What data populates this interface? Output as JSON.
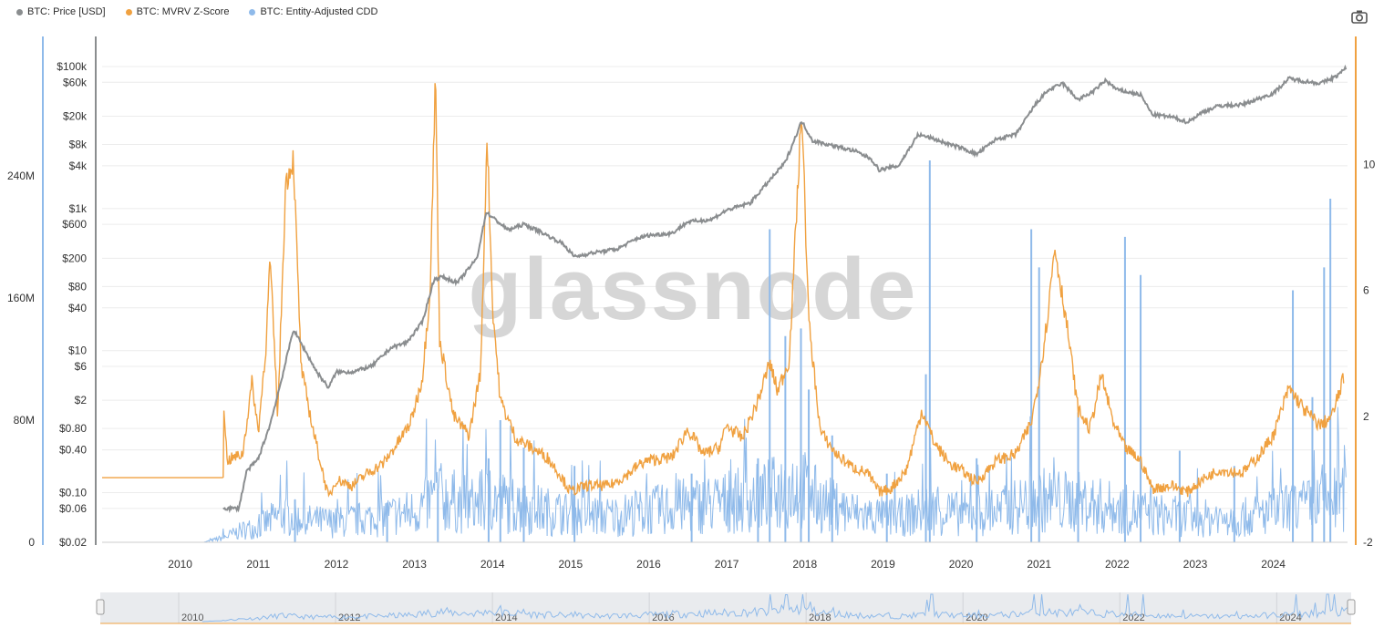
{
  "legend": [
    {
      "label": "BTC: Price [USD]",
      "color": "#8a8d8f"
    },
    {
      "label": "BTC: MVRV Z-Score",
      "color": "#f0a140"
    },
    {
      "label": "BTC: Entity-Adjusted CDD",
      "color": "#8fbaea"
    }
  ],
  "watermark": "glassnode",
  "chart_data": {
    "type": "line",
    "x_axis": {
      "ticks": [
        "2010",
        "2011",
        "2012",
        "2013",
        "2014",
        "2015",
        "2016",
        "2017",
        "2018",
        "2019",
        "2020",
        "2021",
        "2022",
        "2023",
        "2024"
      ],
      "range": [
        2009.0,
        2024.95
      ]
    },
    "y_price": {
      "scale": "log",
      "range": [
        0.02,
        250000
      ],
      "tick_labels": [
        "$100k",
        "$60k",
        "$20k",
        "$8k",
        "$4k",
        "$1k",
        "$600",
        "$200",
        "$80",
        "$40",
        "$10",
        "$6",
        "$2",
        "$0.80",
        "$0.40",
        "$0.10",
        "$0.06",
        "$0.02"
      ],
      "tick_values": [
        100000,
        60000,
        20000,
        8000,
        4000,
        1000,
        600,
        200,
        80,
        40,
        10,
        6,
        2,
        0.8,
        0.4,
        0.1,
        0.06,
        0.02
      ]
    },
    "y_cdd": {
      "range": [
        0,
        330000000
      ],
      "tick_labels": [
        "240M",
        "160M",
        "80M",
        "0"
      ],
      "tick_values": [
        240000000,
        160000000,
        80000000,
        0
      ]
    },
    "y_mvrv": {
      "range": [
        -2,
        14
      ],
      "tick_labels": [
        "10",
        "6",
        "2",
        "-2"
      ],
      "tick_values": [
        10,
        6,
        2,
        -2
      ]
    },
    "series": [
      {
        "name": "BTC: Price [USD]",
        "color": "#8a8d8f",
        "axis": "price",
        "points": [
          [
            2010.55,
            0.06
          ],
          [
            2010.75,
            0.06
          ],
          [
            2010.85,
            0.2
          ],
          [
            2011.0,
            0.3
          ],
          [
            2011.15,
            0.9
          ],
          [
            2011.3,
            4
          ],
          [
            2011.45,
            20
          ],
          [
            2011.6,
            10
          ],
          [
            2011.75,
            5
          ],
          [
            2011.9,
            3
          ],
          [
            2012.0,
            5
          ],
          [
            2012.2,
            5
          ],
          [
            2012.45,
            6
          ],
          [
            2012.7,
            11
          ],
          [
            2012.9,
            13
          ],
          [
            2013.1,
            25
          ],
          [
            2013.25,
            100
          ],
          [
            2013.35,
            110
          ],
          [
            2013.55,
            90
          ],
          [
            2013.8,
            200
          ],
          [
            2013.92,
            900
          ],
          [
            2014.0,
            750
          ],
          [
            2014.2,
            500
          ],
          [
            2014.4,
            600
          ],
          [
            2014.6,
            480
          ],
          [
            2014.9,
            320
          ],
          [
            2015.05,
            210
          ],
          [
            2015.3,
            240
          ],
          [
            2015.6,
            270
          ],
          [
            2015.85,
            380
          ],
          [
            2016.0,
            420
          ],
          [
            2016.3,
            450
          ],
          [
            2016.5,
            650
          ],
          [
            2016.8,
            700
          ],
          [
            2017.0,
            950
          ],
          [
            2017.3,
            1200
          ],
          [
            2017.55,
            2500
          ],
          [
            2017.75,
            4500
          ],
          [
            2017.96,
            17000
          ],
          [
            2018.1,
            9000
          ],
          [
            2018.4,
            7500
          ],
          [
            2018.65,
            6400
          ],
          [
            2018.85,
            5000
          ],
          [
            2018.95,
            3500
          ],
          [
            2019.2,
            4000
          ],
          [
            2019.45,
            11000
          ],
          [
            2019.6,
            10000
          ],
          [
            2019.85,
            8000
          ],
          [
            2020.0,
            7200
          ],
          [
            2020.2,
            5800
          ],
          [
            2020.45,
            9500
          ],
          [
            2020.7,
            11000
          ],
          [
            2020.95,
            29000
          ],
          [
            2021.1,
            45000
          ],
          [
            2021.3,
            58000
          ],
          [
            2021.5,
            34000
          ],
          [
            2021.7,
            45000
          ],
          [
            2021.85,
            64000
          ],
          [
            2022.0,
            47000
          ],
          [
            2022.3,
            40000
          ],
          [
            2022.45,
            21000
          ],
          [
            2022.7,
            19500
          ],
          [
            2022.9,
            16500
          ],
          [
            2023.1,
            23000
          ],
          [
            2023.3,
            28000
          ],
          [
            2023.6,
            29000
          ],
          [
            2023.8,
            35000
          ],
          [
            2024.0,
            42000
          ],
          [
            2024.2,
            68000
          ],
          [
            2024.4,
            62000
          ],
          [
            2024.6,
            58000
          ],
          [
            2024.8,
            72000
          ],
          [
            2024.93,
            95000
          ]
        ]
      },
      {
        "name": "BTC: MVRV Z-Score",
        "color": "#f0a140",
        "axis": "mvrv",
        "points": [
          [
            2009.0,
            0.05
          ],
          [
            2010.55,
            0.05
          ],
          [
            2010.56,
            2.4
          ],
          [
            2010.6,
            0.6
          ],
          [
            2010.8,
            0.8
          ],
          [
            2010.92,
            3.1
          ],
          [
            2011.0,
            1.5
          ],
          [
            2011.1,
            4.3
          ],
          [
            2011.15,
            7.0
          ],
          [
            2011.25,
            2.0
          ],
          [
            2011.35,
            9.4
          ],
          [
            2011.45,
            10.2
          ],
          [
            2011.55,
            3.5
          ],
          [
            2011.7,
            1.6
          ],
          [
            2011.9,
            -0.6
          ],
          [
            2012.0,
            0.0
          ],
          [
            2012.2,
            -0.2
          ],
          [
            2012.4,
            0.2
          ],
          [
            2012.6,
            0.5
          ],
          [
            2012.8,
            1.2
          ],
          [
            2012.95,
            1.8
          ],
          [
            2013.1,
            3.2
          ],
          [
            2013.2,
            6.0
          ],
          [
            2013.27,
            12.9
          ],
          [
            2013.32,
            4.5
          ],
          [
            2013.5,
            2.0
          ],
          [
            2013.7,
            1.4
          ],
          [
            2013.85,
            3.5
          ],
          [
            2013.93,
            11.0
          ],
          [
            2014.0,
            5.5
          ],
          [
            2014.1,
            2.5
          ],
          [
            2014.3,
            1.3
          ],
          [
            2014.5,
            1.0
          ],
          [
            2014.7,
            0.7
          ],
          [
            2014.85,
            0.2
          ],
          [
            2015.0,
            -0.4
          ],
          [
            2015.2,
            -0.2
          ],
          [
            2015.5,
            -0.2
          ],
          [
            2015.7,
            0.1
          ],
          [
            2015.9,
            0.5
          ],
          [
            2016.0,
            0.6
          ],
          [
            2016.3,
            0.7
          ],
          [
            2016.5,
            1.6
          ],
          [
            2016.7,
            0.8
          ],
          [
            2016.9,
            1.0
          ],
          [
            2017.0,
            1.7
          ],
          [
            2017.2,
            1.3
          ],
          [
            2017.4,
            2.5
          ],
          [
            2017.55,
            3.7
          ],
          [
            2017.65,
            2.8
          ],
          [
            2017.8,
            3.8
          ],
          [
            2017.96,
            11.8
          ],
          [
            2018.05,
            5.0
          ],
          [
            2018.2,
            1.5
          ],
          [
            2018.4,
            0.8
          ],
          [
            2018.6,
            0.4
          ],
          [
            2018.8,
            0.2
          ],
          [
            2018.95,
            -0.4
          ],
          [
            2019.1,
            -0.3
          ],
          [
            2019.3,
            0.3
          ],
          [
            2019.5,
            2.2
          ],
          [
            2019.65,
            1.2
          ],
          [
            2019.85,
            0.5
          ],
          [
            2020.0,
            0.3
          ],
          [
            2020.2,
            -0.1
          ],
          [
            2020.45,
            0.6
          ],
          [
            2020.7,
            0.8
          ],
          [
            2020.9,
            1.8
          ],
          [
            2021.0,
            3.2
          ],
          [
            2021.1,
            5.0
          ],
          [
            2021.2,
            7.4
          ],
          [
            2021.35,
            5.0
          ],
          [
            2021.5,
            2.2
          ],
          [
            2021.65,
            1.6
          ],
          [
            2021.8,
            3.3
          ],
          [
            2021.95,
            1.8
          ],
          [
            2022.1,
            1.0
          ],
          [
            2022.3,
            0.6
          ],
          [
            2022.45,
            -0.3
          ],
          [
            2022.7,
            -0.2
          ],
          [
            2022.9,
            -0.4
          ],
          [
            2023.1,
            0.0
          ],
          [
            2023.3,
            0.3
          ],
          [
            2023.6,
            0.2
          ],
          [
            2023.8,
            0.7
          ],
          [
            2024.0,
            1.4
          ],
          [
            2024.2,
            2.9
          ],
          [
            2024.4,
            2.2
          ],
          [
            2024.6,
            1.7
          ],
          [
            2024.75,
            2.0
          ],
          [
            2024.9,
            3.2
          ]
        ]
      },
      {
        "name": "BTC: Entity-Adjusted CDD",
        "color": "#8fbaea",
        "axis": "cdd",
        "points": [
          [
            2010.3,
            0
          ],
          [
            2010.55,
            3000000
          ],
          [
            2010.8,
            8000000
          ],
          [
            2011.0,
            10000000
          ],
          [
            2011.3,
            18000000
          ],
          [
            2011.6,
            14000000
          ],
          [
            2012.0,
            13000000
          ],
          [
            2012.5,
            16000000
          ],
          [
            2013.0,
            20000000
          ],
          [
            2013.3,
            30000000
          ],
          [
            2013.7,
            24000000
          ],
          [
            2014.0,
            28000000
          ],
          [
            2014.5,
            22000000
          ],
          [
            2015.0,
            18000000
          ],
          [
            2015.5,
            17000000
          ],
          [
            2016.0,
            20000000
          ],
          [
            2016.5,
            24000000
          ],
          [
            2017.0,
            26000000
          ],
          [
            2017.5,
            30000000
          ],
          [
            2017.9,
            38000000
          ],
          [
            2018.2,
            26000000
          ],
          [
            2018.7,
            18000000
          ],
          [
            2019.2,
            16000000
          ],
          [
            2019.6,
            22000000
          ],
          [
            2020.0,
            18000000
          ],
          [
            2020.5,
            20000000
          ],
          [
            2021.0,
            28000000
          ],
          [
            2021.5,
            26000000
          ],
          [
            2022.0,
            22000000
          ],
          [
            2022.5,
            18000000
          ],
          [
            2023.0,
            16000000
          ],
          [
            2023.5,
            15000000
          ],
          [
            2024.0,
            20000000
          ],
          [
            2024.5,
            24000000
          ],
          [
            2024.93,
            30000000
          ]
        ],
        "spikes": [
          [
            2011.47,
            28000000
          ],
          [
            2012.65,
            26000000
          ],
          [
            2013.3,
            35000000
          ],
          [
            2013.95,
            55000000
          ],
          [
            2014.1,
            80000000
          ],
          [
            2014.4,
            62000000
          ],
          [
            2015.05,
            50000000
          ],
          [
            2016.55,
            45000000
          ],
          [
            2017.4,
            55000000
          ],
          [
            2017.55,
            205000000
          ],
          [
            2017.75,
            135000000
          ],
          [
            2017.95,
            140000000
          ],
          [
            2018.05,
            100000000
          ],
          [
            2018.35,
            70000000
          ],
          [
            2019.05,
            45000000
          ],
          [
            2019.55,
            110000000
          ],
          [
            2019.6,
            250000000
          ],
          [
            2020.2,
            55000000
          ],
          [
            2020.9,
            205000000
          ],
          [
            2021.0,
            180000000
          ],
          [
            2021.5,
            85000000
          ],
          [
            2022.1,
            200000000
          ],
          [
            2022.3,
            175000000
          ],
          [
            2022.8,
            60000000
          ],
          [
            2023.5,
            50000000
          ],
          [
            2024.25,
            165000000
          ],
          [
            2024.5,
            95000000
          ],
          [
            2024.65,
            180000000
          ],
          [
            2024.73,
            225000000
          ]
        ]
      }
    ],
    "title": "",
    "xlabel": "",
    "ylabel": ""
  },
  "navigator": {
    "labels": [
      "2010",
      "2012",
      "2014",
      "2016",
      "2018",
      "2020",
      "2022",
      "2024"
    ]
  }
}
